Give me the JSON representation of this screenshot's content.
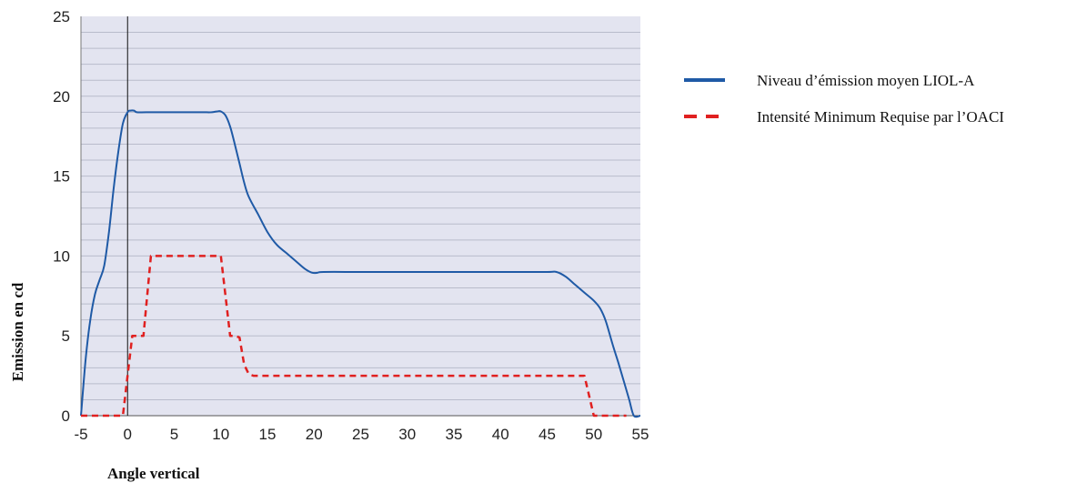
{
  "chart_data": {
    "type": "line",
    "xlabel": "Angle vertical",
    "ylabel": "Emission en cd",
    "xlim": [
      -5,
      55
    ],
    "ylim": [
      0,
      25
    ],
    "xticks": [
      -5,
      0,
      5,
      10,
      15,
      20,
      25,
      30,
      35,
      40,
      45,
      50,
      55
    ],
    "yticks": [
      0,
      5,
      10,
      15,
      20,
      25
    ],
    "minor_y_step": 1,
    "grid": "horizontal",
    "background_color": "#e3e4f0",
    "reference_line_x": 0,
    "legend_position": "right",
    "series": [
      {
        "name": "Niveau d’émission moyen LIOL-A",
        "color": "#1f5aa6",
        "style": "solid",
        "x": [
          -5,
          -4.5,
          -4,
          -3.5,
          -3,
          -2.5,
          -2,
          -1.5,
          -1,
          -0.5,
          0,
          0.3,
          0.7,
          1,
          2,
          4,
          6,
          8,
          9,
          9.6,
          10,
          10.5,
          11,
          11.5,
          12,
          12.5,
          13,
          14,
          15,
          16,
          17,
          18,
          19,
          19.8,
          20.4,
          21,
          25,
          30,
          35,
          40,
          45,
          46,
          47,
          48,
          49,
          50,
          50.7,
          51.3,
          52,
          52.7,
          53.3,
          53.8,
          54.3,
          55
        ],
        "y": [
          0,
          3.5,
          6,
          7.6,
          8.5,
          9.4,
          11.5,
          14.2,
          16.5,
          18.3,
          19,
          19.1,
          19.1,
          19,
          19,
          19,
          19,
          19,
          19,
          19.05,
          19.05,
          18.8,
          18.1,
          17,
          15.8,
          14.6,
          13.7,
          12.6,
          11.5,
          10.7,
          10.2,
          9.7,
          9.2,
          8.95,
          8.95,
          9,
          9,
          9,
          9,
          9,
          9,
          9,
          8.7,
          8.2,
          7.7,
          7.2,
          6.7,
          5.9,
          4.5,
          3.2,
          2,
          1,
          0,
          0
        ]
      },
      {
        "name": "Intensité Minimum Requise par l’OACI",
        "color": "#e02020",
        "style": "dashed",
        "x": [
          -5,
          -0.5,
          0.5,
          1.7,
          2.5,
          10,
          11,
          11.5,
          12,
          12.5,
          13,
          13.5,
          49,
          50,
          53.5
        ],
        "y": [
          0,
          0,
          5,
          5,
          10,
          10,
          5,
          5,
          4.9,
          3.2,
          2.6,
          2.5,
          2.5,
          0,
          0
        ]
      }
    ]
  }
}
